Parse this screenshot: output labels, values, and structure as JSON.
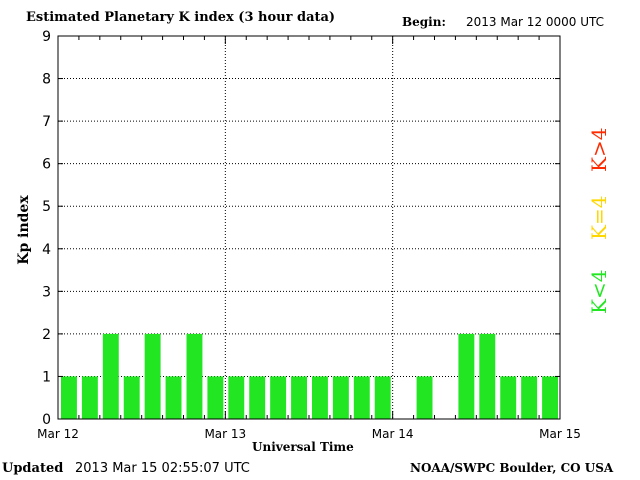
{
  "header": {
    "title": "Estimated Planetary K index (3 hour data)",
    "begin_label": "Begin:",
    "begin_value": "2013 Mar 12 0000 UTC"
  },
  "footer": {
    "updated_label": "Updated",
    "updated_value": "2013 Mar 15 02:55:07 UTC",
    "credit": "NOAA/SWPC Boulder, CO USA"
  },
  "legend": {
    "items": [
      {
        "label": "K>4",
        "color": "#ff2a00"
      },
      {
        "label": "K=4",
        "color": "#ffd700"
      },
      {
        "label": "K<4",
        "color": "#22e622"
      }
    ]
  },
  "chart_data": {
    "type": "bar",
    "title": "Estimated Planetary K index (3 hour data)",
    "xlabel": "Universal Time",
    "ylabel": "Kp index",
    "ylim": [
      0,
      9
    ],
    "yticks": [
      0,
      1,
      2,
      3,
      4,
      5,
      6,
      7,
      8,
      9
    ],
    "x_tick_labels": [
      "Mar 12",
      "Mar 13",
      "Mar 14",
      "Mar 15"
    ],
    "interval_hours": 3,
    "values": [
      1,
      1,
      2,
      1,
      2,
      1,
      2,
      1,
      1,
      1,
      1,
      1,
      1,
      1,
      1,
      1,
      0,
      1,
      0,
      2,
      2,
      1,
      1,
      1
    ],
    "bar_color": "#22e622",
    "grid": "dotted"
  }
}
